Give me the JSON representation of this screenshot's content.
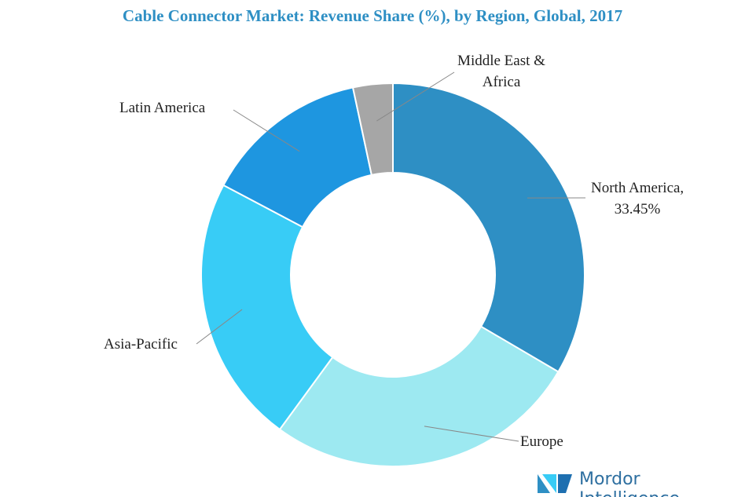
{
  "chart_data": {
    "type": "donut",
    "title": "Cable Connector Market: Revenue Share (%), by Region, Global, 2017",
    "categories": [
      "North America,",
      "Europe",
      "Asia-Pacific",
      "Latin America",
      "Middle East & Africa"
    ],
    "values": [
      33.45,
      26.6,
      22.7,
      13.9,
      3.35
    ],
    "value_labels": [
      "33.45%",
      null,
      null,
      null,
      null
    ],
    "colors": [
      "#2e8fc4",
      "#9de9f1",
      "#38ccf6",
      "#1e96e0",
      "#a6a6a6"
    ]
  },
  "logo": "Mordor Intelligence"
}
